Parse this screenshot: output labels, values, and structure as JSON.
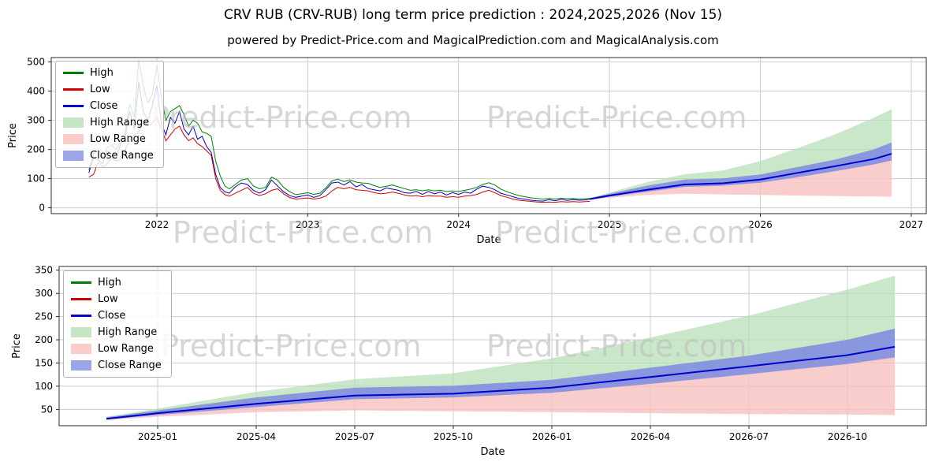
{
  "title": "CRV RUB (CRV-RUB) long term price prediction : 2024,2025,2026 (Nov 15)",
  "subtitle": "powered by Predict-Price.com and MagicalPrediction.com and MagicalAnalysis.com",
  "watermark": "Predict-Price.com",
  "colors": {
    "high": "#008000",
    "low": "#d40000",
    "close": "#0000cc",
    "high_range": "#b5deb5",
    "low_range": "#f9bfbf",
    "close_range": "#7f8ce0",
    "grid": "#cccccc",
    "frame": "#2a2a2a",
    "watermark": "#bcbcbc"
  },
  "legend": [
    {
      "label": "High",
      "swatch": "line",
      "color": "#008000"
    },
    {
      "label": "Low",
      "swatch": "line",
      "color": "#d40000"
    },
    {
      "label": "Close",
      "swatch": "line",
      "color": "#0000cc"
    },
    {
      "label": "High Range",
      "swatch": "patch",
      "color": "#b5deb5"
    },
    {
      "label": "Low Range",
      "swatch": "patch",
      "color": "#f9bfbf"
    },
    {
      "label": "Close Range",
      "swatch": "patch",
      "color": "#7f8ce0"
    }
  ],
  "chart_data": [
    {
      "type": "line",
      "title": "",
      "xlabel": "Date",
      "ylabel": "Price",
      "xlim": [
        2021.3,
        2027.1
      ],
      "ylim": [
        -20,
        515
      ],
      "xticks": [
        2022,
        2023,
        2024,
        2025,
        2026,
        2027
      ],
      "xtick_labels": [
        "2022",
        "2023",
        "2024",
        "2025",
        "2026",
        "2027"
      ],
      "yticks": [
        0,
        100,
        200,
        300,
        400,
        500
      ],
      "grid": true,
      "legend_position": "upper-left",
      "series_names": [
        "High",
        "Low",
        "Close"
      ],
      "band_names": [
        "High Range",
        "Low Range",
        "Close Range"
      ],
      "historical": {
        "points": [
          [
            2021.55,
            130,
            105,
            120
          ],
          [
            2021.58,
            185,
            115,
            175
          ],
          [
            2021.61,
            200,
            155,
            165
          ],
          [
            2021.64,
            175,
            140,
            150
          ],
          [
            2021.67,
            205,
            150,
            195
          ],
          [
            2021.7,
            215,
            170,
            180
          ],
          [
            2021.73,
            200,
            160,
            170
          ],
          [
            2021.76,
            230,
            165,
            220
          ],
          [
            2021.79,
            260,
            200,
            240
          ],
          [
            2021.82,
            355,
            230,
            330
          ],
          [
            2021.85,
            310,
            250,
            270
          ],
          [
            2021.88,
            505,
            260,
            430
          ],
          [
            2021.91,
            420,
            300,
            330
          ],
          [
            2021.94,
            360,
            280,
            300
          ],
          [
            2021.97,
            390,
            290,
            350
          ],
          [
            2022.0,
            490,
            310,
            420
          ],
          [
            2022.03,
            380,
            270,
            290
          ],
          [
            2022.06,
            300,
            230,
            250
          ],
          [
            2022.09,
            330,
            250,
            310
          ],
          [
            2022.12,
            340,
            270,
            290
          ],
          [
            2022.15,
            350,
            280,
            330
          ],
          [
            2022.18,
            320,
            250,
            270
          ],
          [
            2022.21,
            280,
            230,
            250
          ],
          [
            2022.24,
            300,
            240,
            280
          ],
          [
            2022.27,
            290,
            220,
            235
          ],
          [
            2022.3,
            260,
            210,
            245
          ],
          [
            2022.33,
            255,
            195,
            210
          ],
          [
            2022.36,
            245,
            180,
            190
          ],
          [
            2022.39,
            160,
            100,
            115
          ],
          [
            2022.42,
            110,
            60,
            70
          ],
          [
            2022.45,
            75,
            45,
            55
          ],
          [
            2022.48,
            65,
            40,
            50
          ],
          [
            2022.52,
            80,
            50,
            72
          ],
          [
            2022.56,
            95,
            60,
            85
          ],
          [
            2022.6,
            100,
            70,
            80
          ],
          [
            2022.64,
            75,
            50,
            60
          ],
          [
            2022.68,
            65,
            42,
            50
          ],
          [
            2022.72,
            70,
            48,
            62
          ],
          [
            2022.76,
            105,
            60,
            95
          ],
          [
            2022.8,
            95,
            65,
            75
          ],
          [
            2022.84,
            70,
            48,
            55
          ],
          [
            2022.88,
            55,
            35,
            42
          ],
          [
            2022.92,
            45,
            30,
            36
          ],
          [
            2022.96,
            48,
            32,
            40
          ],
          [
            2023.0,
            52,
            34,
            44
          ],
          [
            2023.04,
            46,
            30,
            36
          ],
          [
            2023.08,
            50,
            33,
            42
          ],
          [
            2023.12,
            68,
            40,
            62
          ],
          [
            2023.16,
            92,
            58,
            85
          ],
          [
            2023.2,
            98,
            70,
            88
          ],
          [
            2023.24,
            90,
            65,
            78
          ],
          [
            2023.28,
            96,
            70,
            90
          ],
          [
            2023.32,
            88,
            62,
            72
          ],
          [
            2023.36,
            85,
            60,
            80
          ],
          [
            2023.4,
            84,
            58,
            66
          ],
          [
            2023.44,
            76,
            52,
            62
          ],
          [
            2023.48,
            70,
            48,
            58
          ],
          [
            2023.52,
            74,
            50,
            68
          ],
          [
            2023.56,
            78,
            54,
            64
          ],
          [
            2023.6,
            72,
            50,
            60
          ],
          [
            2023.64,
            66,
            44,
            52
          ],
          [
            2023.68,
            60,
            40,
            50
          ],
          [
            2023.72,
            62,
            42,
            56
          ],
          [
            2023.76,
            58,
            38,
            46
          ],
          [
            2023.8,
            62,
            42,
            56
          ],
          [
            2023.84,
            58,
            40,
            48
          ],
          [
            2023.88,
            60,
            40,
            54
          ],
          [
            2023.92,
            56,
            36,
            44
          ],
          [
            2023.96,
            58,
            38,
            52
          ],
          [
            2024.0,
            56,
            36,
            46
          ],
          [
            2024.04,
            60,
            40,
            54
          ],
          [
            2024.08,
            64,
            42,
            50
          ],
          [
            2024.12,
            70,
            46,
            64
          ],
          [
            2024.16,
            80,
            54,
            74
          ],
          [
            2024.2,
            86,
            60,
            70
          ],
          [
            2024.24,
            78,
            52,
            62
          ],
          [
            2024.28,
            64,
            42,
            50
          ],
          [
            2024.32,
            55,
            36,
            44
          ],
          [
            2024.36,
            48,
            30,
            38
          ],
          [
            2024.4,
            42,
            26,
            32
          ],
          [
            2024.44,
            38,
            24,
            30
          ],
          [
            2024.48,
            34,
            22,
            26
          ],
          [
            2024.52,
            32,
            20,
            24
          ],
          [
            2024.56,
            30,
            19,
            23
          ],
          [
            2024.6,
            32,
            20,
            28
          ],
          [
            2024.64,
            30,
            19,
            24
          ],
          [
            2024.68,
            33,
            21,
            29
          ],
          [
            2024.72,
            31,
            20,
            25
          ],
          [
            2024.76,
            32,
            21,
            28
          ],
          [
            2024.8,
            30,
            20,
            26
          ],
          [
            2024.84,
            31,
            21,
            27
          ],
          [
            2024.87,
            32,
            22,
            30
          ]
        ]
      },
      "prediction": {
        "x": [
          2024.87,
          2025.0,
          2025.25,
          2025.5,
          2025.75,
          2026.0,
          2026.25,
          2026.5,
          2026.75,
          2026.87
        ],
        "close": [
          30,
          42,
          62,
          80,
          84,
          97,
          120,
          143,
          167,
          185
        ],
        "close_low": [
          28,
          38,
          55,
          72,
          76,
          86,
          105,
          126,
          148,
          162
        ],
        "close_high": [
          33,
          48,
          76,
          97,
          101,
          114,
          140,
          166,
          200,
          224
        ],
        "high_top": [
          34,
          52,
          88,
          115,
          128,
          160,
          205,
          252,
          308,
          338
        ],
        "low_bottom": [
          27,
          34,
          44,
          48,
          46,
          44,
          42,
          40,
          39,
          38
        ]
      }
    },
    {
      "type": "line",
      "title": "",
      "xlabel": "Date",
      "ylabel": "Price",
      "xlim": [
        2024.75,
        2026.95
      ],
      "ylim": [
        15,
        358
      ],
      "xticks": [
        2025.0,
        2025.25,
        2025.5,
        2025.75,
        2026.0,
        2026.25,
        2026.5,
        2026.75
      ],
      "xtick_labels": [
        "2025-01",
        "2025-04",
        "2025-07",
        "2025-10",
        "2026-01",
        "2026-04",
        "2026-07",
        "2026-10"
      ],
      "yticks": [
        50,
        100,
        150,
        200,
        250,
        300,
        350
      ],
      "grid": true,
      "legend_position": "upper-left",
      "series_names": [
        "High",
        "Low",
        "Close"
      ],
      "band_names": [
        "High Range",
        "Low Range",
        "Close Range"
      ],
      "prediction": {
        "x": [
          2024.87,
          2025.0,
          2025.25,
          2025.5,
          2025.75,
          2026.0,
          2026.25,
          2026.5,
          2026.75,
          2026.87
        ],
        "close": [
          30,
          42,
          62,
          80,
          84,
          97,
          120,
          143,
          167,
          185
        ],
        "close_low": [
          28,
          38,
          55,
          72,
          76,
          86,
          105,
          126,
          148,
          162
        ],
        "close_high": [
          33,
          48,
          76,
          97,
          101,
          114,
          140,
          166,
          200,
          224
        ],
        "high_top": [
          34,
          52,
          88,
          115,
          128,
          160,
          205,
          252,
          308,
          338
        ],
        "low_bottom": [
          27,
          34,
          44,
          48,
          46,
          44,
          42,
          40,
          39,
          38
        ]
      }
    }
  ]
}
